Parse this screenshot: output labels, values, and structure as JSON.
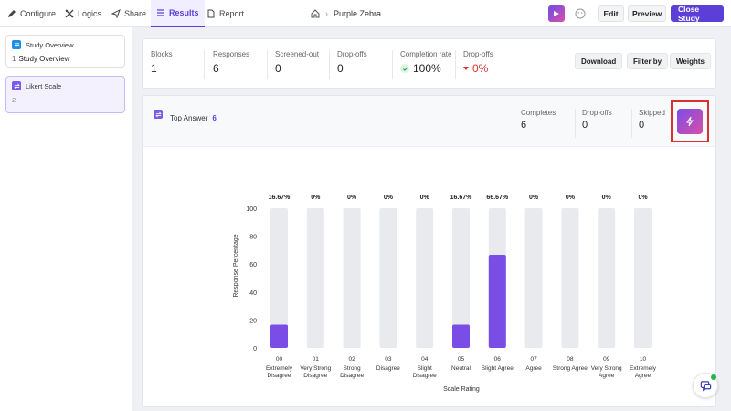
{
  "nav": {
    "configure": "Configure",
    "logics": "Logics",
    "share": "Share",
    "results": "Results",
    "report": "Report"
  },
  "breadcrumb": {
    "study_name": "Purple Zebra"
  },
  "top_actions": {
    "edit": "Edit",
    "preview": "Preview",
    "close_study": "Close Study"
  },
  "sidebar": {
    "blocks": [
      {
        "title": "Study Overview",
        "number": "1",
        "subtitle": "Study Overview"
      },
      {
        "title": "Likert Scale",
        "number": "2",
        "subtitle": ""
      }
    ]
  },
  "summary": {
    "blocks_label": "Blocks",
    "blocks_value": "1",
    "responses_label": "Responses",
    "responses_value": "6",
    "screened_label": "Screened-out",
    "screened_value": "0",
    "dropoffs_label": "Drop-offs",
    "dropoffs_value": "0",
    "completion_label": "Completion rate",
    "completion_value": "100%",
    "dropoffs_rate_label": "Drop-offs",
    "dropoffs_rate_value": "0%",
    "download": "Download",
    "filter_by": "Filter by",
    "weights": "Weights"
  },
  "question": {
    "title": "Top Answer",
    "count": "6",
    "completes_label": "Completes",
    "completes_value": "6",
    "dropoffs_label": "Drop-offs",
    "dropoffs_value": "0",
    "skipped_label": "Skipped",
    "skipped_value": "0"
  },
  "colors": {
    "accent": "#5b3fd6",
    "bar_fill": "#7a4de6",
    "bar_track": "#e9eaee",
    "alert": "#d93030"
  },
  "chart_data": {
    "type": "bar",
    "xlabel": "Scale Rating",
    "ylabel": "Response Percentage",
    "ylim": [
      0,
      100
    ],
    "yticks": [
      "0",
      "20",
      "40",
      "60",
      "80",
      "100"
    ],
    "categories": [
      {
        "code": "00",
        "label": [
          "Extremely",
          "Disagree"
        ]
      },
      {
        "code": "01",
        "label": [
          "Very Strong",
          "Disagree"
        ]
      },
      {
        "code": "02",
        "label": [
          "Strong",
          "Disagree"
        ]
      },
      {
        "code": "03",
        "label": [
          "Disagree"
        ]
      },
      {
        "code": "04",
        "label": [
          "Slight",
          "Disagree"
        ]
      },
      {
        "code": "05",
        "label": [
          "Neutral"
        ]
      },
      {
        "code": "06",
        "label": [
          "Slight Agree"
        ]
      },
      {
        "code": "07",
        "label": [
          "Agree"
        ]
      },
      {
        "code": "08",
        "label": [
          "Strong Agree"
        ]
      },
      {
        "code": "09",
        "label": [
          "Very Strong",
          "Agree"
        ]
      },
      {
        "code": "10",
        "label": [
          "Extremely",
          "Agree"
        ]
      }
    ],
    "values": [
      16.67,
      0,
      0,
      0,
      0,
      16.67,
      66.67,
      0,
      0,
      0,
      0
    ],
    "value_labels": [
      "16.67%",
      "0%",
      "0%",
      "0%",
      "0%",
      "16.67%",
      "66.67%",
      "0%",
      "0%",
      "0%",
      "0%"
    ]
  }
}
